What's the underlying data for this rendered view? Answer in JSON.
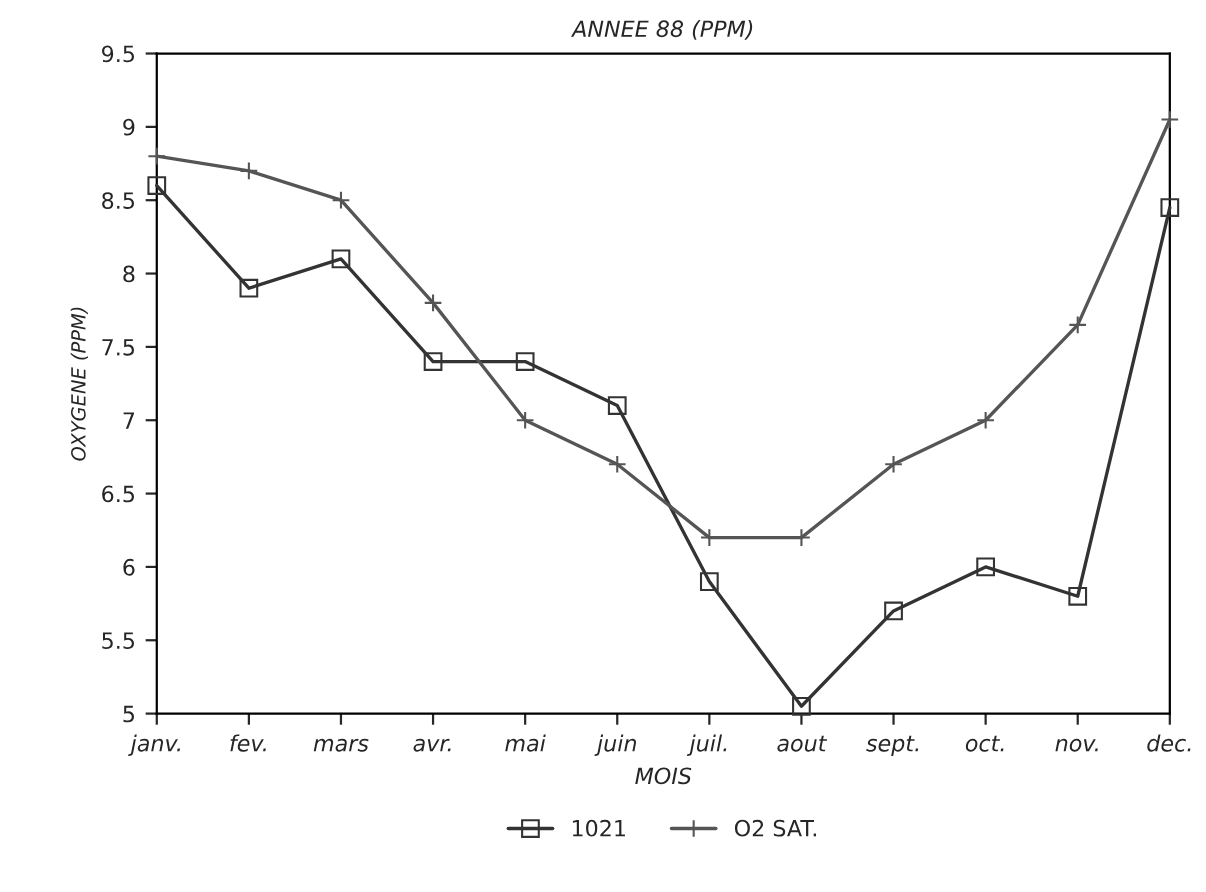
{
  "chart_data": {
    "type": "line",
    "title": "ANNEE 88 (PPM)",
    "xlabel": "MOIS",
    "ylabel": "OXYGENE (PPM)",
    "categories": [
      "janv.",
      "fev.",
      "mars",
      "avr.",
      "mai",
      "juin",
      "juil.",
      "aout",
      "sept.",
      "oct.",
      "nov.",
      "dec."
    ],
    "series": [
      {
        "name": "1021",
        "color": "#333333",
        "marker": "square",
        "values": [
          8.6,
          7.9,
          8.1,
          7.4,
          7.4,
          7.1,
          5.9,
          5.05,
          5.7,
          6.0,
          5.8,
          8.45
        ]
      },
      {
        "name": "O2 SAT.",
        "color": "#555555",
        "marker": "cross",
        "values": [
          8.8,
          8.7,
          8.5,
          7.8,
          7.0,
          6.7,
          6.2,
          6.2,
          6.7,
          7.0,
          7.65,
          9.05
        ]
      }
    ],
    "ylim": [
      5,
      9.5
    ],
    "yticks": [
      5,
      5.5,
      6,
      6.5,
      7,
      7.5,
      8,
      8.5,
      9,
      9.5
    ],
    "grid": false,
    "legend": "bottom",
    "line_style": "solid"
  }
}
